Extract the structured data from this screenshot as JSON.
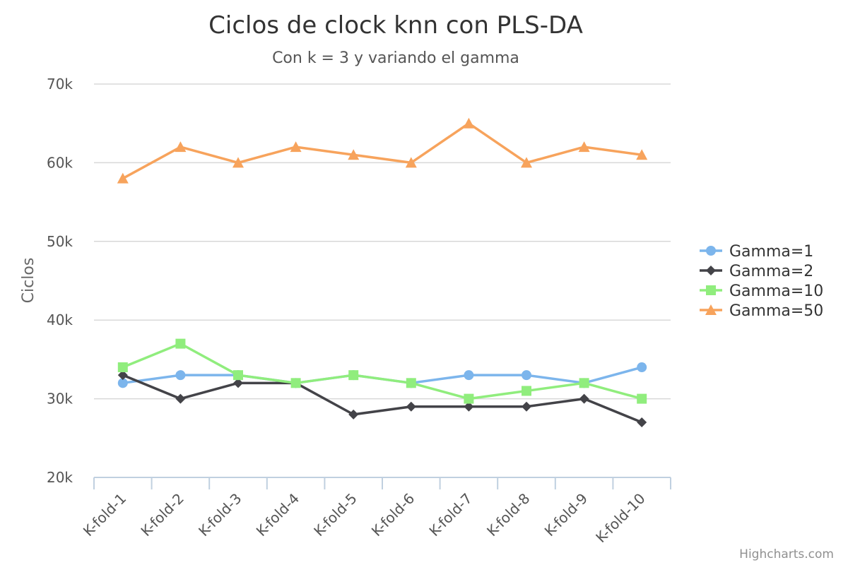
{
  "chart_data": {
    "type": "line",
    "title": "Ciclos de clock knn con PLS-DA",
    "subtitle": "Con k = 3 y variando el gamma",
    "xlabel": "",
    "ylabel": "Ciclos",
    "ylim": [
      20000,
      70000
    ],
    "yticks": [
      20000,
      30000,
      40000,
      50000,
      60000,
      70000
    ],
    "ytick_labels": [
      "20k",
      "30k",
      "40k",
      "50k",
      "60k",
      "70k"
    ],
    "grid": true,
    "legend": "right",
    "categories": [
      "K-fold-1",
      "K-fold-2",
      "K-fold-3",
      "K-fold-4",
      "K-fold-5",
      "K-fold-6",
      "K-fold-7",
      "K-fold-8",
      "K-fold-9",
      "K-fold-10"
    ],
    "series": [
      {
        "name": "Gamma=1",
        "color": "#7cb5ec",
        "marker": "circle",
        "values": [
          32000,
          33000,
          33000,
          32000,
          33000,
          32000,
          33000,
          33000,
          32000,
          34000
        ]
      },
      {
        "name": "Gamma=2",
        "color": "#434348",
        "marker": "diamond",
        "values": [
          33000,
          30000,
          32000,
          32000,
          28000,
          29000,
          29000,
          29000,
          30000,
          27000
        ]
      },
      {
        "name": "Gamma=10",
        "color": "#90ed7d",
        "marker": "square",
        "values": [
          34000,
          37000,
          33000,
          32000,
          33000,
          32000,
          30000,
          31000,
          32000,
          30000
        ]
      },
      {
        "name": "Gamma=50",
        "color": "#f7a35c",
        "marker": "triangle",
        "values": [
          58000,
          62000,
          60000,
          62000,
          61000,
          60000,
          65000,
          60000,
          62000,
          61000
        ]
      }
    ]
  },
  "credits": "Highcharts.com"
}
